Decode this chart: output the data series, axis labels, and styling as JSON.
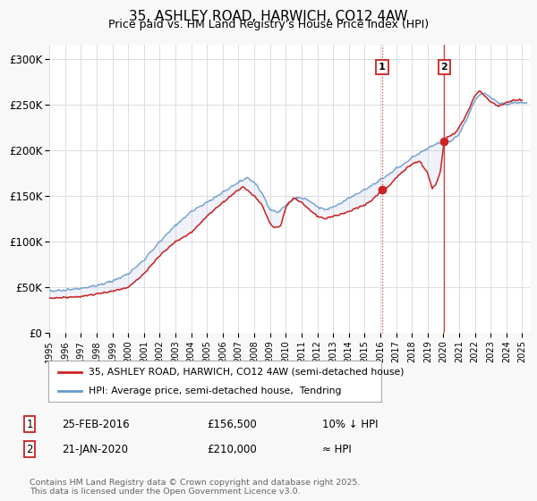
{
  "title": "35, ASHLEY ROAD, HARWICH, CO12 4AW",
  "subtitle": "Price paid vs. HM Land Registry's House Price Index (HPI)",
  "ylabel_ticks": [
    "£0",
    "£50K",
    "£100K",
    "£150K",
    "£200K",
    "£250K",
    "£300K"
  ],
  "ytick_values": [
    0,
    50000,
    100000,
    150000,
    200000,
    250000,
    300000
  ],
  "ylim": [
    0,
    315000
  ],
  "xlim_start": 1995.0,
  "xlim_end": 2025.5,
  "hpi_color": "#6699cc",
  "hpi_fill_color": "#aabbdd",
  "price_color": "#cc2222",
  "dot_color": "#cc2222",
  "marker1_date": 2016.12,
  "marker1_value": 156500,
  "marker1_label": "1",
  "marker2_date": 2020.05,
  "marker2_value": 210000,
  "marker2_label": "2",
  "legend_line1": "35, ASHLEY ROAD, HARWICH, CO12 4AW (semi-detached house)",
  "legend_line2": "HPI: Average price, semi-detached house,  Tendring",
  "annotation1_date": "25-FEB-2016",
  "annotation1_price": "£156,500",
  "annotation1_hpi": "10% ↓ HPI",
  "annotation2_date": "21-JAN-2020",
  "annotation2_price": "£210,000",
  "annotation2_hpi": "≈ HPI",
  "footer": "Contains HM Land Registry data © Crown copyright and database right 2025.\nThis data is licensed under the Open Government Licence v3.0.",
  "background_color": "#f8f8f8",
  "plot_bg_color": "#ffffff",
  "grid_color": "#dddddd"
}
